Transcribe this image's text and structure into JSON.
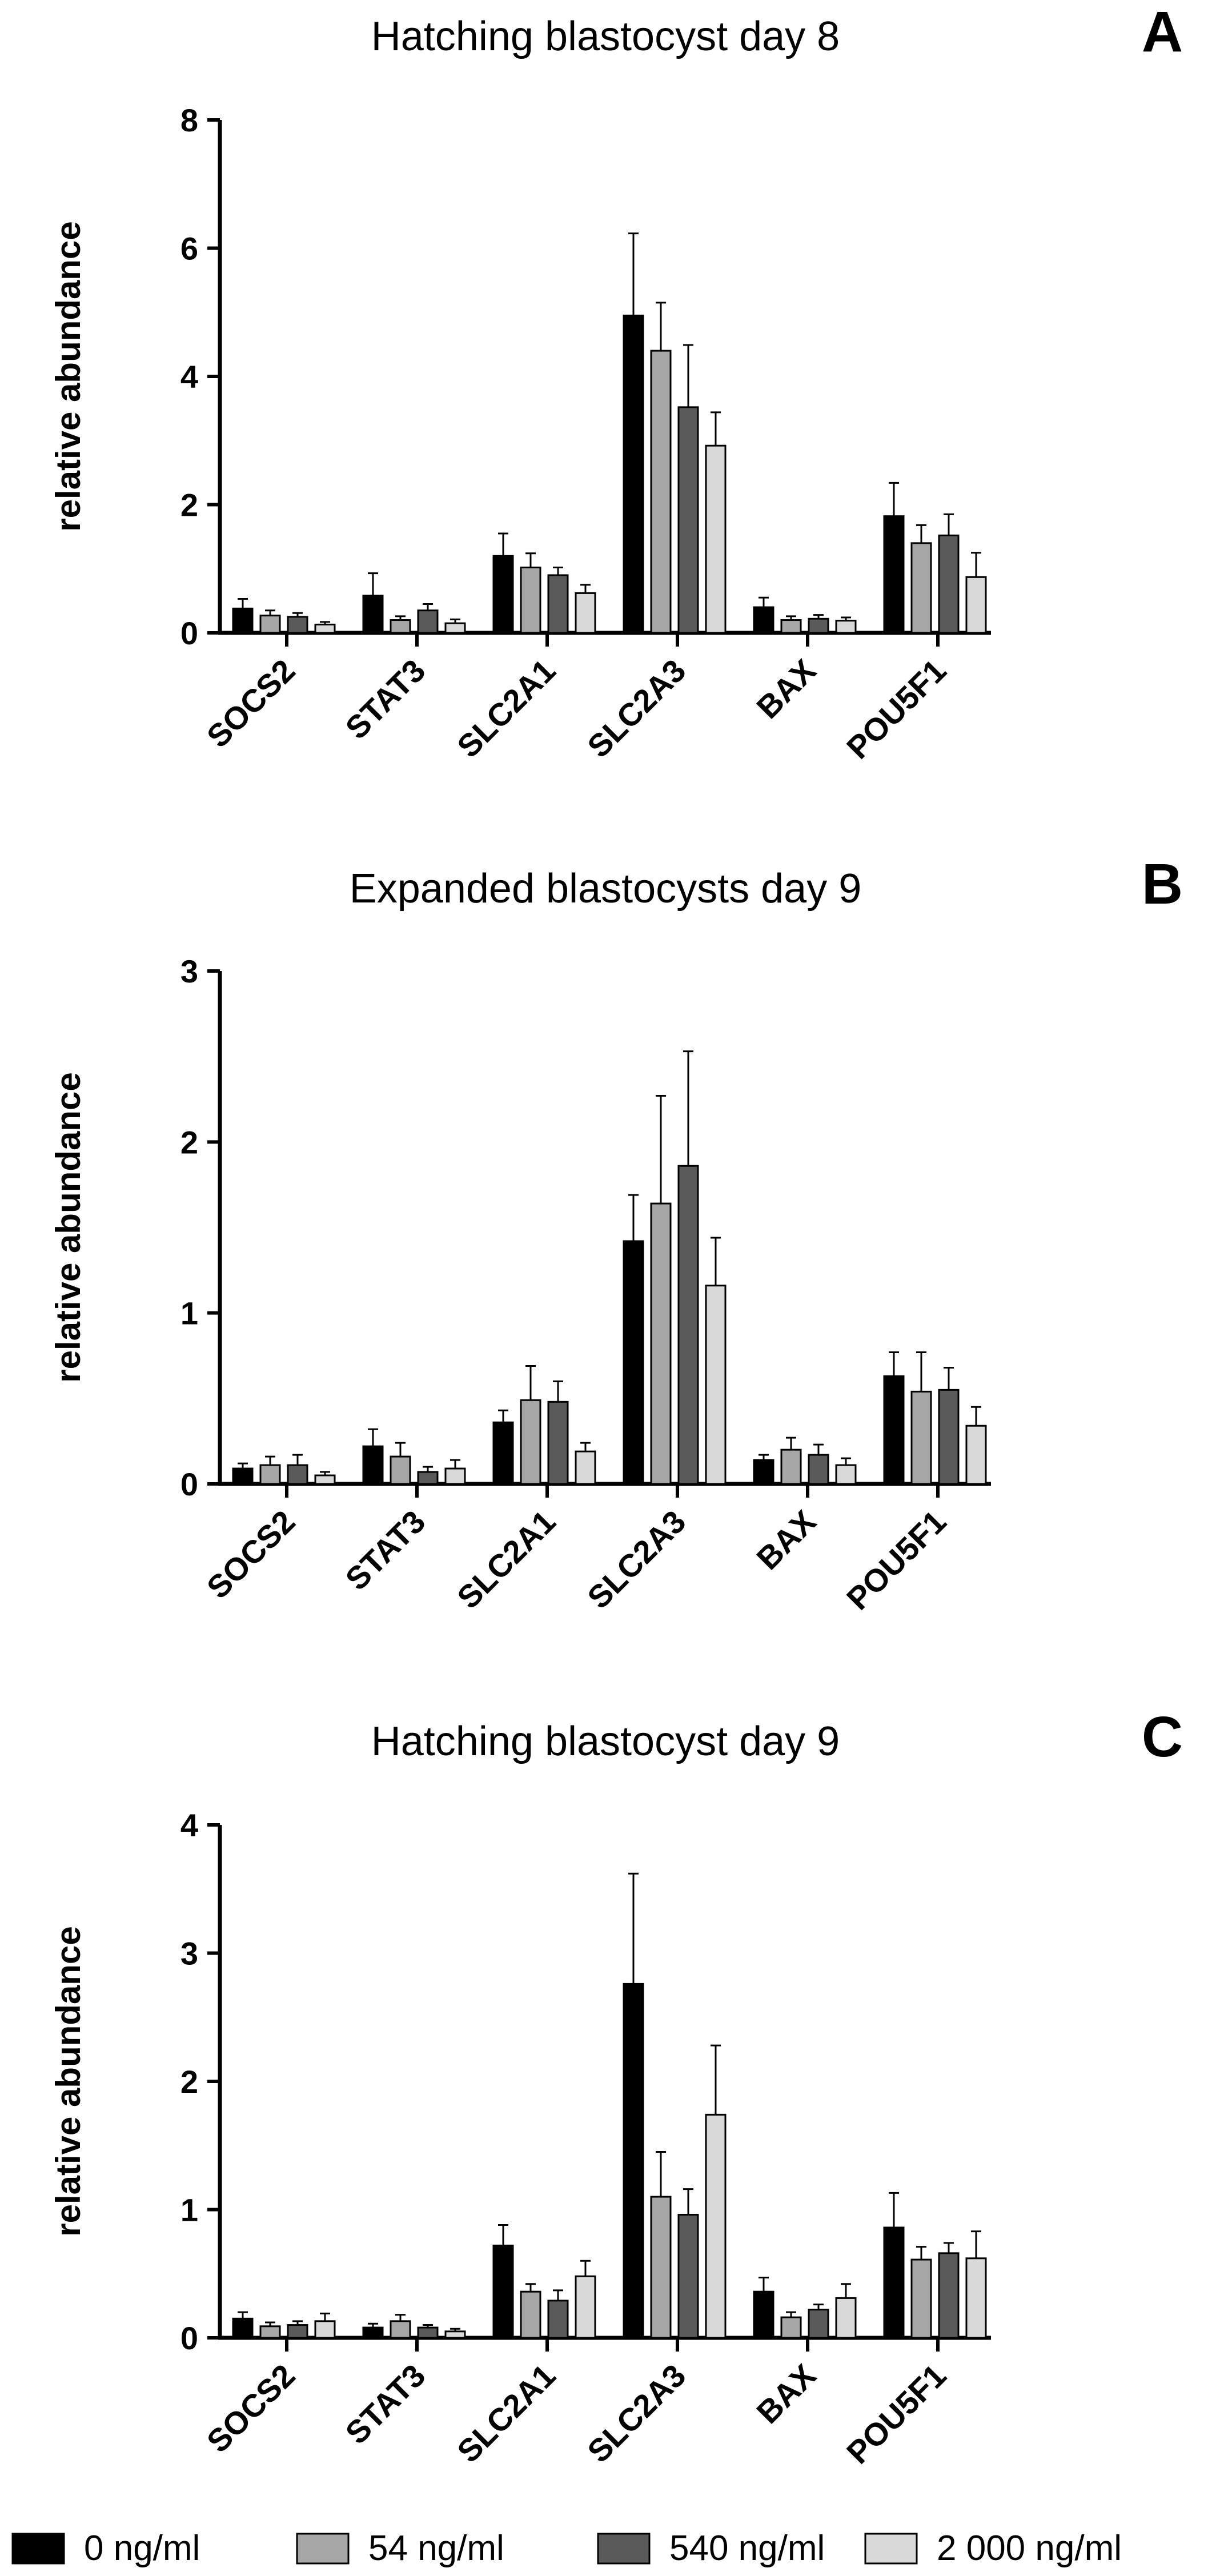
{
  "legend": [
    {
      "label": "0 ng/ml",
      "color": "#000000"
    },
    {
      "label": "54 ng/ml",
      "color": "#a6a6a6"
    },
    {
      "label": "540 ng/ml",
      "color": "#5a5a5a"
    },
    {
      "label": "2 000 ng/ml",
      "color": "#d9d9d9"
    }
  ],
  "chart_data": [
    {
      "type": "bar",
      "panel": "A",
      "title": "Hatching blastocyst day 8",
      "ylabel": "relative abundance",
      "xlabel": "",
      "ylim": [
        0,
        8
      ],
      "yticks": [
        0,
        2,
        4,
        6,
        8
      ],
      "categories": [
        "SOCS2",
        "STAT3",
        "SLC2A1",
        "SLC2A3",
        "BAX",
        "POU5F1"
      ],
      "series": [
        {
          "name": "0 ng/ml",
          "values": [
            0.38,
            0.58,
            1.2,
            4.95,
            0.4,
            1.82
          ],
          "errors": [
            0.15,
            0.35,
            0.35,
            1.28,
            0.15,
            0.52
          ]
        },
        {
          "name": "54 ng/ml",
          "values": [
            0.27,
            0.2,
            1.02,
            4.4,
            0.2,
            1.4
          ],
          "errors": [
            0.08,
            0.06,
            0.22,
            0.75,
            0.06,
            0.28
          ]
        },
        {
          "name": "540 ng/ml",
          "values": [
            0.25,
            0.35,
            0.9,
            3.52,
            0.22,
            1.52
          ],
          "errors": [
            0.06,
            0.1,
            0.12,
            0.97,
            0.06,
            0.33
          ]
        },
        {
          "name": "2 000 ng/ml",
          "values": [
            0.13,
            0.15,
            0.62,
            2.92,
            0.19,
            0.87
          ],
          "errors": [
            0.04,
            0.06,
            0.13,
            0.52,
            0.05,
            0.38
          ]
        }
      ]
    },
    {
      "type": "bar",
      "panel": "B",
      "title": "Expanded blastocysts day 9",
      "ylabel": "relative abundance",
      "xlabel": "",
      "ylim": [
        0,
        3
      ],
      "yticks": [
        0,
        1,
        2,
        3
      ],
      "categories": [
        "SOCS2",
        "STAT3",
        "SLC2A1",
        "SLC2A3",
        "BAX",
        "POU5F1"
      ],
      "series": [
        {
          "name": "0 ng/ml",
          "values": [
            0.09,
            0.22,
            0.36,
            1.42,
            0.14,
            0.63
          ],
          "errors": [
            0.03,
            0.1,
            0.07,
            0.27,
            0.03,
            0.14
          ]
        },
        {
          "name": "54 ng/ml",
          "values": [
            0.11,
            0.16,
            0.49,
            1.64,
            0.2,
            0.54
          ],
          "errors": [
            0.05,
            0.08,
            0.2,
            0.63,
            0.07,
            0.23
          ]
        },
        {
          "name": "540 ng/ml",
          "values": [
            0.11,
            0.07,
            0.48,
            1.86,
            0.17,
            0.55
          ],
          "errors": [
            0.06,
            0.03,
            0.12,
            0.67,
            0.06,
            0.13
          ]
        },
        {
          "name": "2 000 ng/ml",
          "values": [
            0.05,
            0.09,
            0.19,
            1.16,
            0.11,
            0.34
          ],
          "errors": [
            0.02,
            0.05,
            0.05,
            0.28,
            0.04,
            0.11
          ]
        }
      ]
    },
    {
      "type": "bar",
      "panel": "C",
      "title": "Hatching blastocyst day 9",
      "ylabel": "relative abundance",
      "xlabel": "",
      "ylim": [
        0,
        4
      ],
      "yticks": [
        0,
        1,
        2,
        3,
        4
      ],
      "categories": [
        "SOCS2",
        "STAT3",
        "SLC2A1",
        "SLC2A3",
        "BAX",
        "POU5F1"
      ],
      "series": [
        {
          "name": "0 ng/ml",
          "values": [
            0.15,
            0.08,
            0.72,
            2.76,
            0.36,
            0.86
          ],
          "errors": [
            0.05,
            0.03,
            0.16,
            0.86,
            0.11,
            0.27
          ]
        },
        {
          "name": "54 ng/ml",
          "values": [
            0.09,
            0.13,
            0.36,
            1.1,
            0.16,
            0.61
          ],
          "errors": [
            0.03,
            0.05,
            0.06,
            0.35,
            0.04,
            0.1
          ]
        },
        {
          "name": "540 ng/ml",
          "values": [
            0.1,
            0.08,
            0.29,
            0.96,
            0.22,
            0.66
          ],
          "errors": [
            0.03,
            0.02,
            0.08,
            0.2,
            0.04,
            0.08
          ]
        },
        {
          "name": "2 000 ng/ml",
          "values": [
            0.13,
            0.05,
            0.48,
            1.74,
            0.31,
            0.62
          ],
          "errors": [
            0.06,
            0.02,
            0.12,
            0.54,
            0.11,
            0.21
          ]
        }
      ]
    }
  ]
}
